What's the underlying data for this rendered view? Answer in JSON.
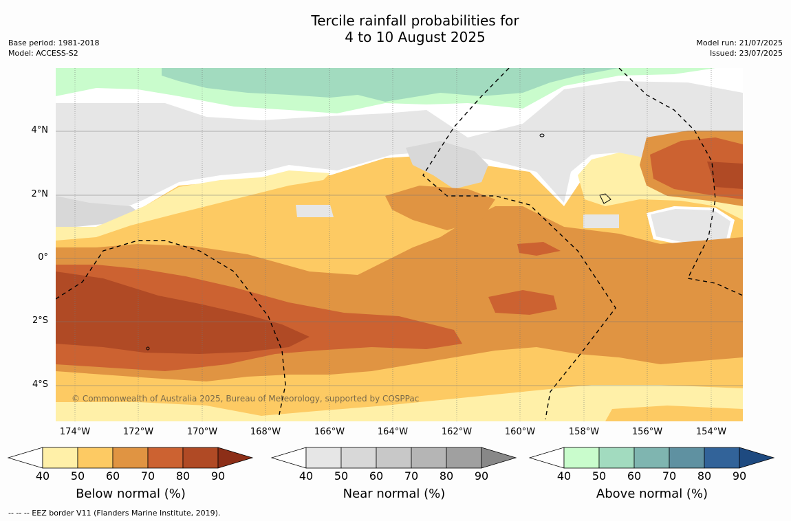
{
  "title": {
    "line1": "Tercile rainfall probabilities for",
    "line2": "4 to 10 August 2025"
  },
  "meta_left": {
    "base_period": "Base period: 1981-2018",
    "model": "Model: ACCESS-S2"
  },
  "meta_right": {
    "model_run": "Model run: 21/07/2025",
    "issued": "Issued: 23/07/2025"
  },
  "map": {
    "lat_labels": [
      "4°N",
      "2°N",
      "0°",
      "2°S",
      "4°S"
    ],
    "lon_labels": [
      "174°W",
      "172°W",
      "170°W",
      "168°W",
      "166°W",
      "164°W",
      "162°W",
      "160°W",
      "158°W",
      "156°W",
      "154°W"
    ],
    "copyright": "© Commonwealth of Australia 2025, Bureau of Meteorology, supported by COSPPac"
  },
  "colorbars": [
    {
      "label": "Below normal (%)",
      "ticks": [
        "40",
        "50",
        "60",
        "70",
        "80",
        "90"
      ],
      "colors": [
        "#fff0a8",
        "#fdca63",
        "#e09442",
        "#cc6231",
        "#b04a25"
      ],
      "end_color": "#8c2e17"
    },
    {
      "label": "Near normal (%)",
      "ticks": [
        "40",
        "50",
        "60",
        "70",
        "80",
        "90"
      ],
      "colors": [
        "#e6e6e6",
        "#d8d8d8",
        "#c8c8c8",
        "#b5b5b5",
        "#a0a0a0"
      ],
      "end_color": "#888888"
    },
    {
      "label": "Above normal (%)",
      "ticks": [
        "40",
        "50",
        "60",
        "70",
        "80",
        "90"
      ],
      "colors": [
        "#c9fccc",
        "#a2dbbf",
        "#7fb5b0",
        "#5f91a1",
        "#326399"
      ],
      "end_color": "#1e4a80"
    }
  ],
  "footer": "--  --  -- EEZ border V11 (Flanders Marine Institute, 2019)."
}
